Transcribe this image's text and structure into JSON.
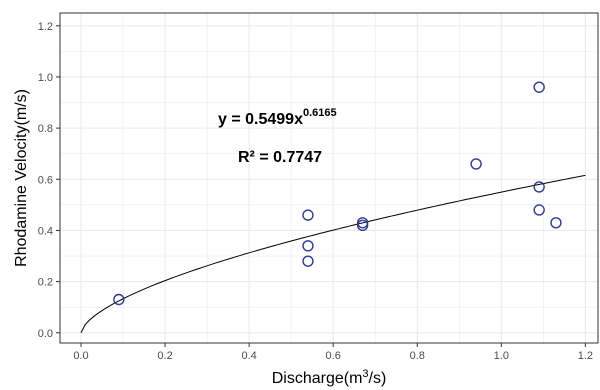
{
  "chart_data": {
    "type": "scatter",
    "xlabel": {
      "prefix": "Discharge(m",
      "sup": "3",
      "suffix": "/s)"
    },
    "ylabel": "Rhodamine Velocity(m/s)",
    "xlim": [
      -0.05,
      1.23
    ],
    "ylim": [
      -0.04,
      1.25
    ],
    "x_ticks": [
      0.0,
      0.2,
      0.4,
      0.6,
      0.8,
      1.0,
      1.2
    ],
    "x_tick_labels": [
      "0.0",
      "0.2",
      "0.4",
      "0.6",
      "0.8",
      "1.0",
      "1.2"
    ],
    "y_ticks": [
      0.0,
      0.2,
      0.4,
      0.6,
      0.8,
      1.0,
      1.2
    ],
    "y_tick_labels": [
      "0.0",
      "0.2",
      "0.4",
      "0.6",
      "0.8",
      "1.0",
      "1.2"
    ],
    "grid": true,
    "points": [
      {
        "x": 0.09,
        "y": 0.13
      },
      {
        "x": 0.54,
        "y": 0.46
      },
      {
        "x": 0.54,
        "y": 0.34
      },
      {
        "x": 0.54,
        "y": 0.28
      },
      {
        "x": 0.67,
        "y": 0.43
      },
      {
        "x": 0.67,
        "y": 0.42
      },
      {
        "x": 0.94,
        "y": 0.66
      },
      {
        "x": 1.09,
        "y": 0.96
      },
      {
        "x": 1.09,
        "y": 0.57
      },
      {
        "x": 1.09,
        "y": 0.48
      },
      {
        "x": 1.13,
        "y": 0.43
      }
    ],
    "fit": {
      "type": "power",
      "a": 0.5499,
      "b": 0.6165,
      "x_range": [
        0.0,
        1.2
      ]
    },
    "annotations": {
      "equation_base": "y = 0.5499x",
      "equation_exponent": "0.6165",
      "r_squared": "R² = 0.7747"
    },
    "colors": {
      "marker": "#2f3a8f",
      "fit_line": "#000000",
      "grid": "#ebebeb",
      "border": "#333333"
    }
  }
}
